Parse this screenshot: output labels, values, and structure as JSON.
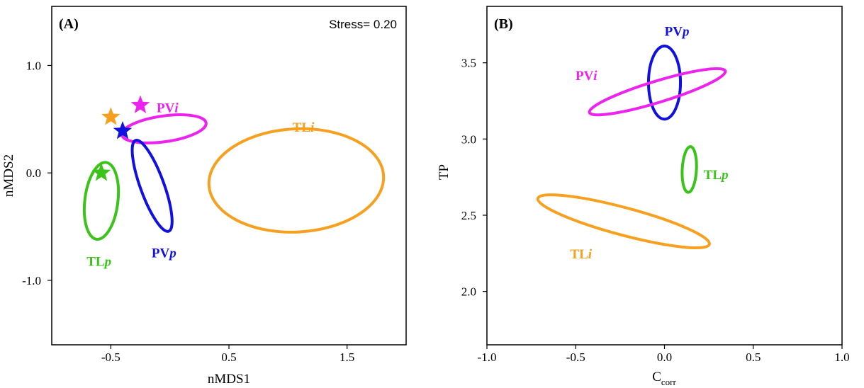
{
  "colors": {
    "PVp": "#1010e0",
    "PVi": "#ee22ee",
    "TLp": "#3ac41a",
    "TLi": "#f7a01f"
  },
  "chart_data": [
    {
      "type": "scatter",
      "panel_label": "(A)",
      "annotation": "Stress= 0.20",
      "xlabel": "nMDS1",
      "ylabel": "nMDS2",
      "xlim": [
        -1.0,
        2.0
      ],
      "ylim": [
        -1.6,
        1.55
      ],
      "xticks": [
        -0.5,
        0.5,
        1.5
      ],
      "xtick_labels": [
        "-0.5",
        "0.5",
        "1.5"
      ],
      "yticks": [
        1.0,
        0.0,
        -1.0
      ],
      "ytick_labels": [
        "1.0",
        "0.0",
        "-1.0"
      ],
      "grid": false,
      "ellipses": [
        {
          "group": "PVi",
          "label_main": "PV",
          "label_italic": "i",
          "color_key": "PVi",
          "cx": -0.05,
          "cy": 0.41,
          "rx": 0.36,
          "ry": 0.12,
          "angle": -8,
          "label_x": -0.02,
          "label_y": 0.61
        },
        {
          "group": "PVp",
          "label_main": "PV",
          "label_italic": "p",
          "color_key": "PVp",
          "cx": -0.15,
          "cy": -0.12,
          "rx": 0.1,
          "ry": 0.45,
          "angle": -20,
          "label_x": -0.05,
          "label_y": -0.74
        },
        {
          "group": "TLp",
          "label_main": "TL",
          "label_italic": "p",
          "color_key": "TLp",
          "cx": -0.58,
          "cy": -0.26,
          "rx": 0.14,
          "ry": 0.36,
          "angle": 7,
          "label_x": -0.6,
          "label_y": -0.82
        },
        {
          "group": "TLi",
          "label_main": "TL",
          "label_italic": "i",
          "color_key": "TLi",
          "cx": 1.07,
          "cy": -0.07,
          "rx": 0.74,
          "ry": 0.48,
          "angle": -3,
          "label_x": 1.13,
          "label_y": 0.43
        }
      ],
      "points": [
        {
          "group": "PVi",
          "color_key": "PVi",
          "x": -0.25,
          "y": 0.63
        },
        {
          "group": "TLi",
          "color_key": "TLi",
          "x": -0.5,
          "y": 0.52
        },
        {
          "group": "PVp",
          "color_key": "PVp",
          "x": -0.4,
          "y": 0.39
        },
        {
          "group": "TLp",
          "color_key": "TLp",
          "x": -0.58,
          "y": 0.0
        }
      ]
    },
    {
      "type": "scatter",
      "panel_label": "(B)",
      "xlabel": "C",
      "xlabel_sub": "corr",
      "ylabel": "TP",
      "xlim": [
        -1.0,
        1.0
      ],
      "ylim": [
        1.65,
        3.87
      ],
      "xticks": [
        -1.0,
        -0.5,
        0.0,
        0.5,
        1.0
      ],
      "xtick_labels": [
        "-1.0",
        "-0.5",
        "0.0",
        "0.5",
        "1.0"
      ],
      "yticks": [
        3.5,
        3.0,
        2.5,
        2.0
      ],
      "ytick_labels": [
        "3.5",
        "3.0",
        "2.5",
        "2.0"
      ],
      "grid": false,
      "ellipses": [
        {
          "group": "PVp",
          "label_main": "PV",
          "label_italic": "p",
          "color_key": "PVp",
          "cx": 0.0,
          "cy": 3.37,
          "rx": 0.09,
          "ry": 0.24,
          "angle": 0,
          "label_x": 0.07,
          "label_y": 3.71
        },
        {
          "group": "PVi",
          "label_main": "PV",
          "label_italic": "i",
          "color_key": "PVi",
          "cx": -0.04,
          "cy": 3.31,
          "rx": 0.4,
          "ry": 0.07,
          "angle": -17,
          "label_x": -0.44,
          "label_y": 3.42
        },
        {
          "group": "TLp",
          "label_main": "TL",
          "label_italic": "p",
          "color_key": "TLp",
          "cx": 0.14,
          "cy": 2.8,
          "rx": 0.04,
          "ry": 0.15,
          "angle": 3,
          "label_x": 0.29,
          "label_y": 2.77
        },
        {
          "group": "TLi",
          "label_main": "TL",
          "label_italic": "i",
          "color_key": "TLi",
          "cx": -0.23,
          "cy": 2.46,
          "rx": 0.5,
          "ry": 0.09,
          "angle": 15,
          "label_x": -0.47,
          "label_y": 2.25
        }
      ],
      "points": []
    }
  ]
}
